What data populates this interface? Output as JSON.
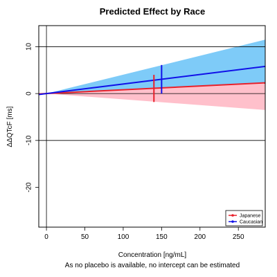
{
  "chart_data": {
    "type": "line",
    "title": "Predicted Effect by Race",
    "xlabel": "Concentration [ng/mL]",
    "ylabel": "ΔΔQTcF [ms]",
    "subtitle": "As no placebo is available, no intercept can be estimated",
    "xlim": [
      -10,
      285
    ],
    "ylim": [
      -28.5,
      14.5
    ],
    "x_ticks": [
      0,
      50,
      100,
      150,
      200,
      250
    ],
    "y_ticks": [
      -20,
      -10,
      0,
      10
    ],
    "hlines": [
      -10,
      0,
      10
    ],
    "vlines": [
      0
    ],
    "grid": false,
    "legend_position": "bottom-right",
    "series": [
      {
        "name": "Japanese",
        "color": "#e8202a",
        "band_color": "#ffc0cb",
        "line": {
          "x": [
            -10,
            285
          ],
          "y": [
            -0.08,
            2.3
          ]
        },
        "band_lower": {
          "x": [
            0,
            285
          ],
          "y": [
            0,
            -3.5
          ]
        },
        "band_upper": {
          "x": [
            0,
            285
          ],
          "y": [
            0,
            2.3
          ]
        },
        "marker": {
          "x": 140,
          "y": 1.0,
          "lower": -1.8,
          "upper": 4.0
        }
      },
      {
        "name": "Caucasian",
        "color": "#1010e8",
        "band_color": "#7ecbf8",
        "line": {
          "x": [
            -10,
            285
          ],
          "y": [
            -0.2,
            5.8
          ]
        },
        "band_lower": {
          "x": [
            0,
            285
          ],
          "y": [
            0,
            2.3
          ]
        },
        "band_upper": {
          "x": [
            0,
            285
          ],
          "y": [
            0,
            11.5
          ]
        },
        "marker": {
          "x": 150,
          "y": 3.1,
          "lower": 0,
          "upper": 6.1
        }
      }
    ]
  }
}
